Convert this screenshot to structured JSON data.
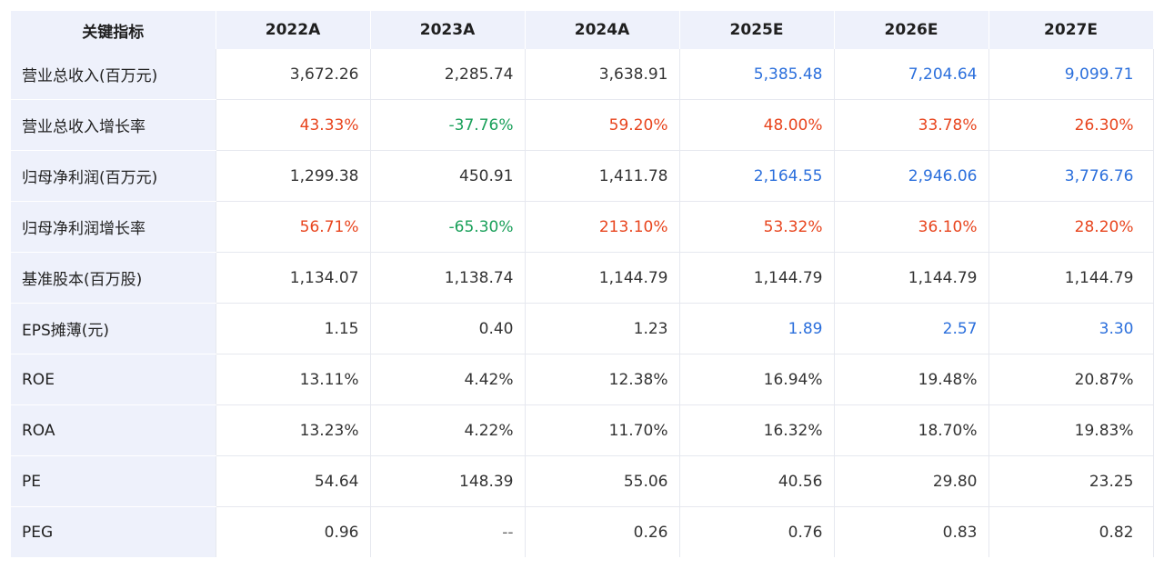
{
  "header": {
    "label": "关键指标",
    "years": [
      "2022A",
      "2023A",
      "2024A",
      "2025E",
      "2026E",
      "2027E"
    ]
  },
  "colors": {
    "header_bg": "#eef1fb",
    "positive_growth": "#e8451e",
    "negative_growth": "#1aa05a",
    "estimate": "#2b6fdc"
  },
  "rows": [
    {
      "label": "营业总收入(百万元)",
      "values": [
        "3,672.26",
        "2,285.74",
        "3,638.91",
        "5,385.48",
        "7,204.64",
        "9,099.71"
      ]
    },
    {
      "label": "营业总收入增长率",
      "values": [
        "43.33%",
        "-37.76%",
        "59.20%",
        "48.00%",
        "33.78%",
        "26.30%"
      ]
    },
    {
      "label": "归母净利润(百万元)",
      "values": [
        "1,299.38",
        "450.91",
        "1,411.78",
        "2,164.55",
        "2,946.06",
        "3,776.76"
      ]
    },
    {
      "label": "归母净利润增长率",
      "values": [
        "56.71%",
        "-65.30%",
        "213.10%",
        "53.32%",
        "36.10%",
        "28.20%"
      ]
    },
    {
      "label": "基准股本(百万股)",
      "values": [
        "1,134.07",
        "1,138.74",
        "1,144.79",
        "1,144.79",
        "1,144.79",
        "1,144.79"
      ]
    },
    {
      "label": "EPS摊薄(元)",
      "values": [
        "1.15",
        "0.40",
        "1.23",
        "1.89",
        "2.57",
        "3.30"
      ]
    },
    {
      "label": "ROE",
      "values": [
        "13.11%",
        "4.42%",
        "12.38%",
        "16.94%",
        "19.48%",
        "20.87%"
      ]
    },
    {
      "label": "ROA",
      "values": [
        "13.23%",
        "4.22%",
        "11.70%",
        "16.32%",
        "18.70%",
        "19.83%"
      ]
    },
    {
      "label": "PE",
      "values": [
        "54.64",
        "148.39",
        "55.06",
        "40.56",
        "29.80",
        "23.25"
      ]
    },
    {
      "label": "PEG",
      "values": [
        "0.96",
        "--",
        "0.26",
        "0.76",
        "0.83",
        "0.82"
      ]
    }
  ]
}
